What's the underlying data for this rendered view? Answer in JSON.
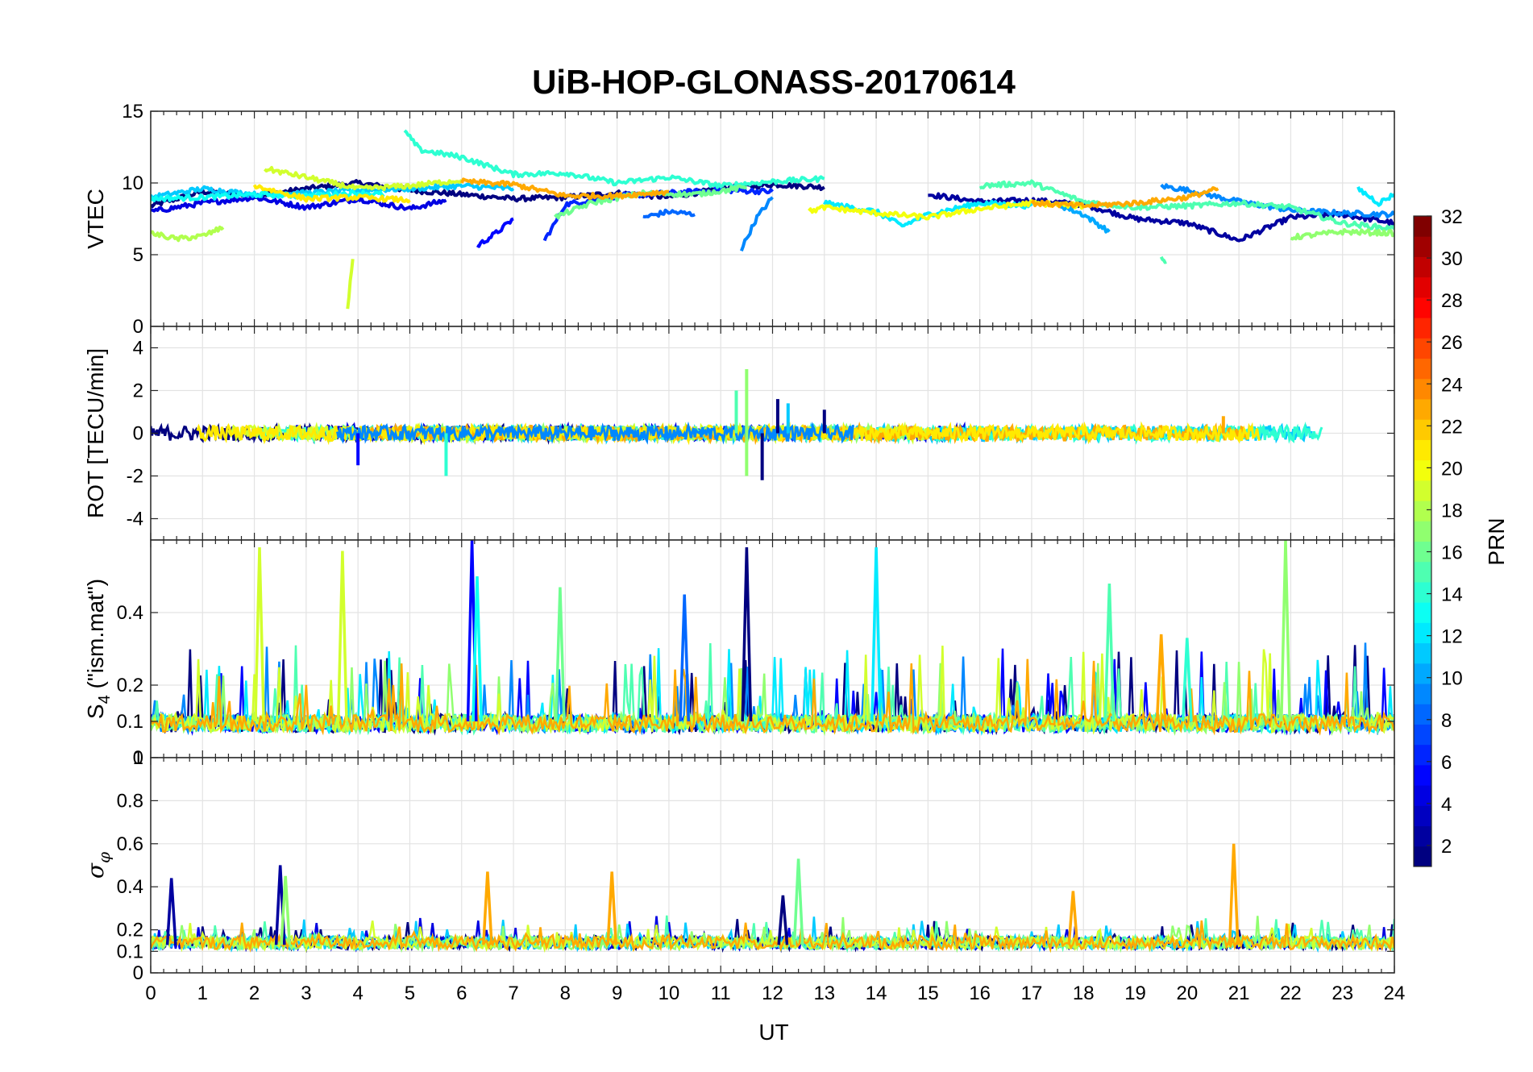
{
  "chart_data": {
    "type": "line",
    "title": "UiB-HOP-GLONASS-20170614",
    "xlabel": "UT",
    "x_ticks": [
      "0",
      "1",
      "2",
      "3",
      "4",
      "5",
      "6",
      "7",
      "8",
      "9",
      "10",
      "11",
      "12",
      "13",
      "14",
      "15",
      "16",
      "17",
      "18",
      "19",
      "20",
      "21",
      "22",
      "23",
      "24"
    ],
    "xlim": [
      0,
      24
    ],
    "grid": true,
    "colormap": "jet",
    "colorbar": {
      "label": "PRN",
      "range": [
        1,
        32
      ],
      "ticks": [
        "2",
        "4",
        "6",
        "8",
        "10",
        "12",
        "14",
        "16",
        "18",
        "20",
        "22",
        "24",
        "26",
        "28",
        "30",
        "32"
      ]
    },
    "panels": [
      {
        "ylabel": "VTEC",
        "ylim": [
          0,
          15
        ],
        "y_ticks": [
          "0",
          "5",
          "10",
          "15"
        ],
        "series": [
          {
            "prn": 1,
            "x": [
              0,
              1,
              2,
              3,
              4,
              5,
              6,
              7,
              8,
              9,
              10,
              11,
              12,
              13
            ],
            "y": [
              8.4,
              9.4,
              9.1,
              9.6,
              10.0,
              9.5,
              9.2,
              8.9,
              9.0,
              9.3,
              9.0,
              9.6,
              9.9,
              9.7
            ]
          },
          {
            "prn": 2,
            "x": [
              15,
              16,
              17,
              18,
              19,
              20,
              21,
              22,
              23,
              24
            ],
            "y": [
              9.2,
              8.7,
              8.8,
              8.5,
              7.5,
              7.2,
              6.0,
              7.6,
              7.8,
              7.2
            ]
          },
          {
            "prn": 4,
            "x": [
              0,
              1,
              2,
              3,
              4,
              5,
              5.7
            ],
            "y": [
              8.0,
              8.6,
              9.0,
              8.3,
              8.9,
              8.2,
              8.8
            ]
          },
          {
            "prn": 5,
            "x": [
              6.3,
              6.7,
              7.0
            ],
            "y": [
              5.6,
              6.6,
              7.5
            ]
          },
          {
            "prn": 6,
            "x": [
              7.6,
              7.8,
              8.0,
              9.0,
              10.0,
              11.0,
              12.0
            ],
            "y": [
              6.0,
              7.2,
              8.5,
              9.1,
              9.3,
              9.5,
              9.4
            ]
          },
          {
            "prn": 8,
            "x": [
              9.5,
              10.0,
              10.5
            ],
            "y": [
              7.6,
              8.0,
              7.8
            ]
          },
          {
            "prn": 9,
            "x": [
              11.4,
              11.7,
              12.0
            ],
            "y": [
              5.4,
              7.6,
              9.0
            ]
          },
          {
            "prn": 9,
            "x": [
              19.5,
              20.0,
              21.0,
              22.0,
              23.0,
              24.0
            ],
            "y": [
              9.8,
              9.5,
              8.7,
              8.1,
              7.9,
              7.8
            ]
          },
          {
            "prn": 10,
            "x": [
              17.5,
              18.0,
              18.5
            ],
            "y": [
              8.5,
              7.8,
              6.6
            ]
          },
          {
            "prn": 11,
            "x": [
              0,
              1,
              2,
              3,
              4,
              5,
              6,
              7
            ],
            "y": [
              9.0,
              9.6,
              9.2,
              9.3,
              9.5,
              9.6,
              9.8,
              9.6
            ]
          },
          {
            "prn": 12,
            "x": [
              13.0,
              14.0,
              14.5,
              15.0,
              16.0,
              17.0
            ],
            "y": [
              8.6,
              8.0,
              7.0,
              7.8,
              8.6,
              8.4
            ]
          },
          {
            "prn": 12,
            "x": [
              23.3,
              23.7,
              24.0
            ],
            "y": [
              9.6,
              8.6,
              9.2
            ]
          },
          {
            "prn": 13,
            "x": [
              0,
              1,
              2,
              3,
              4,
              4.5
            ],
            "y": [
              8.9,
              9.0,
              9.2,
              9.1,
              9.3,
              9.2
            ]
          },
          {
            "prn": 14,
            "x": [
              4.9,
              5.2,
              6.0,
              7.0,
              8.0,
              9.0,
              10.0,
              11.0,
              12.0,
              13.0
            ],
            "y": [
              13.6,
              12.3,
              11.8,
              10.6,
              10.7,
              10.0,
              10.4,
              9.8,
              10.1,
              10.3
            ]
          },
          {
            "prn": 15,
            "x": [
              16.0,
              17.0,
              18.0,
              19.0,
              20.0,
              21.0,
              22.0,
              23.0,
              24.0
            ],
            "y": [
              9.8,
              10.0,
              8.7,
              8.3,
              8.4,
              8.6,
              8.3,
              7.2,
              6.8
            ]
          },
          {
            "prn": 15,
            "x": [
              19.5,
              19.6
            ],
            "y": [
              4.9,
              4.5
            ]
          },
          {
            "prn": 16,
            "x": [
              7.8,
              8.5,
              9.5,
              10.5,
              11.5
            ],
            "y": [
              7.6,
              8.6,
              9.3,
              9.2,
              9.7
            ]
          },
          {
            "prn": 17,
            "x": [
              22.0,
              23.0,
              24.0
            ],
            "y": [
              6.2,
              6.6,
              6.5
            ]
          },
          {
            "prn": 18,
            "x": [
              0,
              0.5,
              1.0,
              1.4
            ],
            "y": [
              6.5,
              6.1,
              6.3,
              6.9
            ]
          },
          {
            "prn": 19,
            "x": [
              3.8,
              3.9
            ],
            "y": [
              1.3,
              4.7
            ]
          },
          {
            "prn": 19,
            "x": [
              2.2,
              3.0,
              4.0,
              5.0,
              6.0
            ],
            "y": [
              11.0,
              10.4,
              9.6,
              9.8,
              10.2
            ]
          },
          {
            "prn": 20,
            "x": [
              12.7,
              13.0,
              14.0,
              15.0,
              16.0,
              17.0,
              18.0
            ],
            "y": [
              8.0,
              8.3,
              7.9,
              7.6,
              8.2,
              8.6,
              8.4
            ]
          },
          {
            "prn": 21,
            "x": [
              2.0,
              3.0,
              4.0,
              5.0
            ],
            "y": [
              9.8,
              8.9,
              9.0,
              8.8
            ]
          },
          {
            "prn": 23,
            "x": [
              6.0,
              7.0,
              8.0,
              9.0,
              10.0
            ],
            "y": [
              10.1,
              9.9,
              9.1,
              9.1,
              9.4
            ]
          },
          {
            "prn": 23,
            "x": [
              17.0,
              18.0,
              19.0,
              20.0,
              20.6
            ],
            "y": [
              8.6,
              8.4,
              8.6,
              9.0,
              9.6
            ]
          }
        ]
      },
      {
        "ylabel": "ROT [TECU/min]",
        "ylim": [
          -5,
          5
        ],
        "y_ticks": [
          "-4",
          "-2",
          "0",
          "2",
          "4"
        ],
        "spikes": [
          {
            "prn": 17,
            "x": 11.5,
            "y": 3.0
          },
          {
            "prn": 15,
            "x": 11.3,
            "y": 2.0
          },
          {
            "prn": 1,
            "x": 12.1,
            "y": 1.6
          },
          {
            "prn": 1,
            "x": 11.8,
            "y": -2.2
          },
          {
            "prn": 17,
            "x": 11.5,
            "y": -2.0
          },
          {
            "prn": 14,
            "x": 5.7,
            "y": -2.0
          },
          {
            "prn": 5,
            "x": 4.0,
            "y": -1.5
          },
          {
            "prn": 11,
            "x": 12.3,
            "y": 1.4
          },
          {
            "prn": 1,
            "x": 13.0,
            "y": 1.1
          },
          {
            "prn": 23,
            "x": 20.7,
            "y": 0.8
          }
        ]
      },
      {
        "ylabel": "S4 (\"ism.mat\")",
        "ylabel_main": "S",
        "ylabel_sub": "4",
        "ylabel_rest": " (\"ism.mat\")",
        "ylim": [
          0,
          0.6
        ],
        "y_ticks": [
          "0",
          "0.1",
          "0.2",
          "0.4"
        ],
        "y_tick_values": [
          0,
          0.1,
          0.2,
          0.4
        ],
        "peaks": [
          {
            "prn": 19,
            "x": 2.1,
            "y": 0.58
          },
          {
            "prn": 19,
            "x": 3.7,
            "y": 0.57
          },
          {
            "prn": 5,
            "x": 6.2,
            "y": 0.6
          },
          {
            "prn": 13,
            "x": 6.3,
            "y": 0.5
          },
          {
            "prn": 16,
            "x": 7.9,
            "y": 0.47
          },
          {
            "prn": 8,
            "x": 10.3,
            "y": 0.45
          },
          {
            "prn": 1,
            "x": 11.5,
            "y": 0.58
          },
          {
            "prn": 12,
            "x": 14.0,
            "y": 0.58
          },
          {
            "prn": 17,
            "x": 21.9,
            "y": 0.6
          },
          {
            "prn": 14,
            "x": 20.0,
            "y": 0.33
          },
          {
            "prn": 23,
            "x": 19.5,
            "y": 0.34
          },
          {
            "prn": 15,
            "x": 18.5,
            "y": 0.48
          }
        ]
      },
      {
        "ylabel": "σφ",
        "ylabel_main": "σ",
        "ylabel_sub": "φ",
        "ylim": [
          0,
          1
        ],
        "y_ticks": [
          "0",
          "0.1",
          "0.2",
          "0.4",
          "0.6",
          "0.8",
          "1"
        ],
        "y_tick_values": [
          0,
          0.1,
          0.2,
          0.4,
          0.6,
          0.8,
          1
        ],
        "peaks": [
          {
            "prn": 2,
            "x": 2.5,
            "y": 0.5
          },
          {
            "prn": 17,
            "x": 2.6,
            "y": 0.45
          },
          {
            "prn": 2,
            "x": 0.4,
            "y": 0.44
          },
          {
            "prn": 23,
            "x": 6.5,
            "y": 0.47
          },
          {
            "prn": 23,
            "x": 8.9,
            "y": 0.47
          },
          {
            "prn": 16,
            "x": 12.5,
            "y": 0.53
          },
          {
            "prn": 23,
            "x": 17.8,
            "y": 0.38
          },
          {
            "prn": 23,
            "x": 20.9,
            "y": 0.6
          },
          {
            "prn": 1,
            "x": 12.2,
            "y": 0.36
          }
        ]
      }
    ]
  }
}
